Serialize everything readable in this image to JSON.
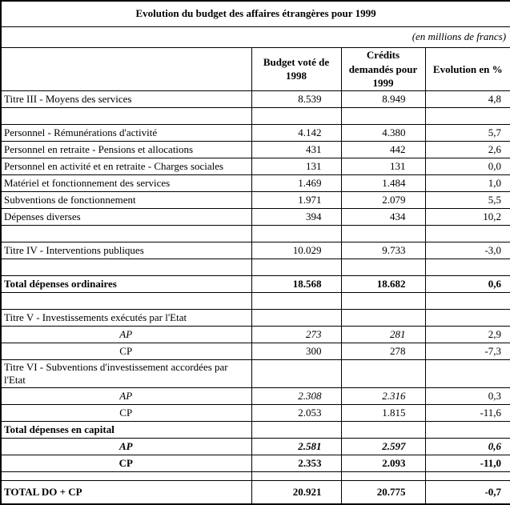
{
  "title": "Evolution du budget des affaires étrangères pour 1999",
  "units_note": "(en millions de francs)",
  "header": {
    "col_label": "",
    "col_1998": "Budget voté de 1998",
    "col_1999": "Crédits demandés pour 1999",
    "col_evo": "Evolution en %"
  },
  "rows": [
    {
      "label": "Titre III - Moyens des services",
      "v1998": "8.539",
      "v1999": "8.949",
      "evo": "4,8"
    },
    {
      "label": "",
      "v1998": "",
      "v1999": "",
      "evo": ""
    },
    {
      "label": "Personnel - Rémunérations d'activité",
      "v1998": "4.142",
      "v1999": "4.380",
      "evo": "5,7"
    },
    {
      "label": "Personnel en retraite - Pensions et allocations",
      "v1998": "431",
      "v1999": "442",
      "evo": "2,6"
    },
    {
      "label": "Personnel en activité et en retraite - Charges sociales",
      "v1998": "131",
      "v1999": "131",
      "evo": "0,0"
    },
    {
      "label": "Matériel et fonctionnement des services",
      "v1998": "1.469",
      "v1999": "1.484",
      "evo": "1,0"
    },
    {
      "label": "Subventions de fonctionnement",
      "v1998": "1.971",
      "v1999": "2.079",
      "evo": "5,5"
    },
    {
      "label": "Dépenses diverses",
      "v1998": "394",
      "v1999": "434",
      "evo": "10,2"
    },
    {
      "label": "",
      "v1998": "",
      "v1999": "",
      "evo": ""
    },
    {
      "label": "Titre IV - Interventions publiques",
      "v1998": "10.029",
      "v1999": "9.733",
      "evo": "-3,0"
    },
    {
      "label": "",
      "v1998": "",
      "v1999": "",
      "evo": ""
    },
    {
      "label": "Total dépenses ordinaires",
      "v1998": "18.568",
      "v1999": "18.682",
      "evo": "0,6"
    },
    {
      "label": "",
      "v1998": "",
      "v1999": "",
      "evo": ""
    },
    {
      "label": "Titre V - Investissements exécutés par l'Etat",
      "v1998": "",
      "v1999": "",
      "evo": ""
    },
    {
      "label": "AP",
      "v1998": "273",
      "v1999": "281",
      "evo": "2,9"
    },
    {
      "label": "CP",
      "v1998": "300",
      "v1999": "278",
      "evo": "-7,3"
    },
    {
      "label": "Titre VI - Subventions d'investissement accordées par l'Etat",
      "v1998": "",
      "v1999": "",
      "evo": ""
    },
    {
      "label": "AP",
      "v1998": "2.308",
      "v1999": "2.316",
      "evo": "0,3"
    },
    {
      "label": "CP",
      "v1998": "2.053",
      "v1999": "1.815",
      "evo": "-11,6"
    },
    {
      "label": "Total dépenses en capital",
      "v1998": "",
      "v1999": "",
      "evo": ""
    },
    {
      "label": "AP",
      "v1998": "2.581",
      "v1999": "2.597",
      "evo": "0,6"
    },
    {
      "label": "CP",
      "v1998": "2.353",
      "v1999": "2.093",
      "evo": "-11,0"
    },
    {
      "label": "",
      "v1998": "",
      "v1999": "",
      "evo": ""
    },
    {
      "label": "TOTAL DO + CP",
      "v1998": "20.921",
      "v1999": "20.775",
      "evo": "-0,7"
    }
  ]
}
